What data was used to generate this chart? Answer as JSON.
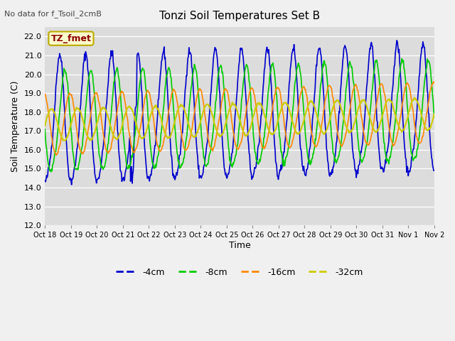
{
  "title": "Tonzi Soil Temperatures Set B",
  "no_data_text": "No data for f_Tsoil_2cmB",
  "legend_box_text": "TZ_fmet",
  "xlabel": "Time",
  "ylabel": "Soil Temperature (C)",
  "ylim": [
    12.0,
    22.5
  ],
  "yticks": [
    12.0,
    13.0,
    14.0,
    15.0,
    16.0,
    17.0,
    18.0,
    19.0,
    20.0,
    21.0,
    22.0
  ],
  "x_labels": [
    "Oct 18",
    "Oct 19",
    "Oct 20",
    "Oct 21",
    "Oct 22",
    "Oct 23",
    "Oct 24",
    "Oct 25",
    "Oct 26",
    "Oct 27",
    "Oct 28",
    "Oct 29",
    "Oct 30",
    "Oct 31",
    "Nov 1",
    "Nov 2"
  ],
  "colors": {
    "4cm": "#0000cc",
    "8cm": "#00cc00",
    "16cm": "#ff8800",
    "32cm": "#cccc00"
  },
  "fig_bg": "#f0f0f0",
  "ax_bg": "#dcdcdc",
  "grid_color": "#ffffff"
}
